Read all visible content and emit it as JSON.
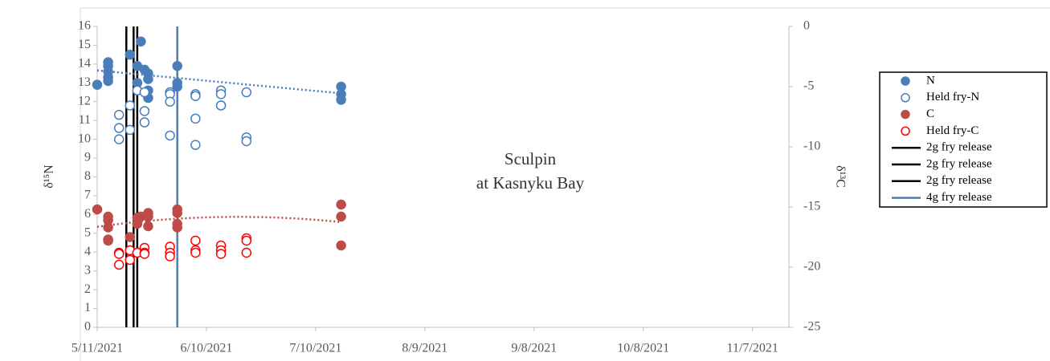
{
  "chart_data": {
    "type": "scatter",
    "annotation": [
      "Sculpin",
      "at Kasnyku Bay"
    ],
    "ylabel": "δ¹⁵N",
    "y2label": "δ¹³C",
    "xlim": [
      "2021-05-11",
      "2021-11-17"
    ],
    "xticks": [
      {
        "value": "2021-05-11",
        "label": "5/11/2021"
      },
      {
        "value": "2021-06-10",
        "label": "6/10/2021"
      },
      {
        "value": "2021-07-10",
        "label": "7/10/2021"
      },
      {
        "value": "2021-08-09",
        "label": "8/9/2021"
      },
      {
        "value": "2021-09-08",
        "label": "9/8/2021"
      },
      {
        "value": "2021-10-08",
        "label": "10/8/2021"
      },
      {
        "value": "2021-11-07",
        "label": "11/7/2021"
      }
    ],
    "ylim": [
      0,
      16
    ],
    "yticks": [
      0,
      1,
      2,
      3,
      4,
      5,
      6,
      7,
      8,
      9,
      10,
      11,
      12,
      13,
      14,
      15,
      16
    ],
    "y2lim": [
      -25,
      0
    ],
    "y2ticks": [
      -25,
      -20,
      -15,
      -10,
      -5,
      0
    ],
    "series": [
      {
        "name": "N",
        "color": "#4a7ebb",
        "filled": true,
        "axis": "y",
        "trendline": "linear",
        "x": [
          "2021-05-11",
          "2021-05-14",
          "2021-05-14",
          "2021-05-14",
          "2021-05-14",
          "2021-05-14",
          "2021-05-20",
          "2021-05-22",
          "2021-05-22",
          "2021-05-23",
          "2021-05-24",
          "2021-05-25",
          "2021-05-25",
          "2021-05-25",
          "2021-05-25",
          "2021-06-02",
          "2021-06-02",
          "2021-06-02",
          "2021-07-17",
          "2021-07-17",
          "2021-07-17"
        ],
        "values": [
          12.9,
          14.1,
          13.9,
          13.6,
          13.3,
          13.1,
          14.5,
          13.9,
          13.0,
          15.2,
          13.7,
          13.5,
          13.2,
          12.6,
          12.2,
          13.9,
          13.0,
          12.8,
          12.8,
          12.4,
          12.1
        ]
      },
      {
        "name": "Held fry-N",
        "color": "#4a7ebb",
        "filled": false,
        "axis": "y",
        "x": [
          "2021-05-17",
          "2021-05-17",
          "2021-05-17",
          "2021-05-20",
          "2021-05-20",
          "2021-05-22",
          "2021-05-24",
          "2021-05-24",
          "2021-05-24",
          "2021-05-31",
          "2021-05-31",
          "2021-05-31",
          "2021-05-31",
          "2021-06-07",
          "2021-06-07",
          "2021-06-07",
          "2021-06-07",
          "2021-06-14",
          "2021-06-14",
          "2021-06-14",
          "2021-06-14",
          "2021-06-21",
          "2021-06-21",
          "2021-06-21"
        ],
        "values": [
          11.3,
          10.6,
          10.0,
          11.8,
          10.5,
          12.6,
          12.5,
          11.5,
          10.9,
          12.5,
          12.4,
          12.0,
          10.2,
          12.4,
          12.3,
          11.1,
          9.7,
          12.6,
          12.4,
          11.8,
          11.8,
          12.5,
          10.1,
          9.9
        ]
      },
      {
        "name": "C",
        "color": "#be4b48",
        "filled": true,
        "axis": "y2",
        "trendline": "poly2",
        "x": [
          "2021-05-11",
          "2021-05-14",
          "2021-05-14",
          "2021-05-14",
          "2021-05-14",
          "2021-05-14",
          "2021-05-20",
          "2021-05-22",
          "2021-05-22",
          "2021-05-23",
          "2021-05-25",
          "2021-05-25",
          "2021-05-25",
          "2021-06-02",
          "2021-06-02",
          "2021-06-02",
          "2021-06-02",
          "2021-07-17",
          "2021-07-17",
          "2021-07-17"
        ],
        "values": [
          -15.2,
          -15.8,
          -16.1,
          -16.7,
          -17.7,
          -17.8,
          -17.5,
          -15.9,
          -16.4,
          -15.8,
          -15.5,
          -15.8,
          -16.6,
          -15.2,
          -15.5,
          -16.4,
          -16.7,
          -14.8,
          -15.8,
          -18.2
        ]
      },
      {
        "name": "Held fry-C",
        "color": "#ff0000",
        "filled": false,
        "axis": "y2",
        "x": [
          "2021-05-17",
          "2021-05-17",
          "2021-05-17",
          "2021-05-20",
          "2021-05-20",
          "2021-05-22",
          "2021-05-24",
          "2021-05-24",
          "2021-05-24",
          "2021-05-31",
          "2021-05-31",
          "2021-05-31",
          "2021-06-07",
          "2021-06-07",
          "2021-06-07",
          "2021-06-14",
          "2021-06-14",
          "2021-06-14",
          "2021-06-21",
          "2021-06-21",
          "2021-06-21"
        ],
        "values": [
          -18.8,
          -18.9,
          -19.8,
          -18.6,
          -19.4,
          -18.8,
          -18.4,
          -18.8,
          -18.9,
          -18.3,
          -18.8,
          -19.1,
          -17.8,
          -18.6,
          -18.8,
          -18.2,
          -18.6,
          -18.9,
          -17.6,
          -17.8,
          -18.8
        ]
      }
    ],
    "vlines": [
      {
        "name": "2g fry release",
        "color": "#000000",
        "x": "2021-05-19"
      },
      {
        "name": "2g fry release",
        "color": "#000000",
        "x": "2021-05-21"
      },
      {
        "name": "2g fry release",
        "color": "#000000",
        "x": "2021-05-22"
      },
      {
        "name": "4g fry release",
        "color": "#4a7ebb",
        "x": "2021-06-02"
      }
    ]
  }
}
